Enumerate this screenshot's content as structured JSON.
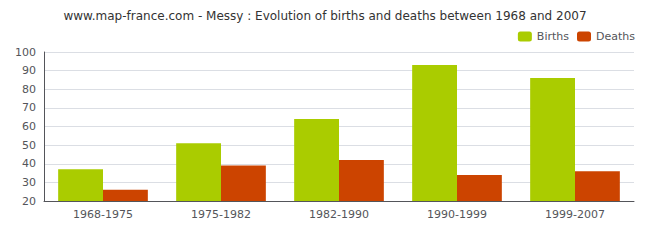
{
  "chart_data": {
    "type": "bar",
    "title": "www.map-france.com - Messy : Evolution of births and deaths between 1968 and 2007",
    "categories": [
      "1968-1975",
      "1975-1982",
      "1982-1990",
      "1990-1999",
      "1999-2007"
    ],
    "series": [
      {
        "name": "Births",
        "color": "#aacc00",
        "values": [
          37,
          51,
          64,
          93,
          86
        ]
      },
      {
        "name": "Deaths",
        "color": "#cc4400",
        "values": [
          26,
          39,
          42,
          34,
          36
        ]
      }
    ],
    "ylim": [
      20,
      100
    ],
    "yticks": [
      20,
      30,
      40,
      50,
      60,
      70,
      80,
      90,
      100
    ],
    "grid": true,
    "legend": "upper right"
  }
}
